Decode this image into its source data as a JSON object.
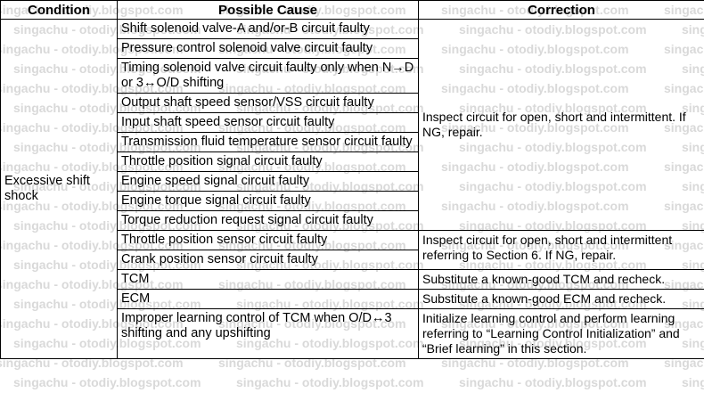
{
  "headers": {
    "condition": "Condition",
    "cause": "Possible Cause",
    "correction": "Correction"
  },
  "condition": "Excessive shift shock",
  "causes": [
    "Shift solenoid valve-A and/or-B circuit faulty",
    "Pressure control solenoid valve circuit faulty",
    "Timing solenoid valve circuit faulty only when N→D or 3↔O/D shifting",
    "Output shaft speed sensor/VSS circuit faulty",
    "Input shaft speed sensor circuit faulty",
    "Transmission fluid temperature sensor circuit faulty",
    "Throttle position signal circuit faulty",
    "Engine speed signal circuit faulty",
    "Engine torque signal circuit faulty",
    "Torque reduction request signal circuit faulty",
    "Throttle position sensor circuit faulty",
    "Crank position sensor circuit faulty",
    "TCM",
    "ECM",
    "Improper learning control of TCM when O/D↔3 shifting and any upshifting"
  ],
  "corrections": [
    "Inspect circuit for open, short and intermittent. If NG, repair.",
    "Inspect circuit for open, short and intermittent referring to Section 6. If NG, repair.",
    "Substitute a known-good TCM and recheck.",
    "Substitute a known-good ECM and recheck.",
    "Initialize learning control and perform learning referring to “Learning Control Initialization” and “Brief learning” in this section."
  ],
  "watermark": "singachu - otodiy.blogspot.com"
}
